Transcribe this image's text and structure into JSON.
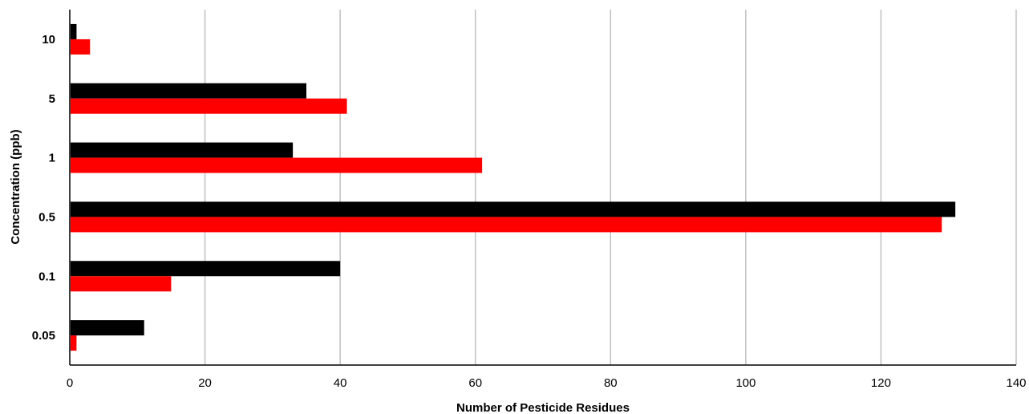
{
  "chart_data": {
    "type": "bar",
    "orientation": "horizontal",
    "categories": [
      "10",
      "5",
      "1",
      "0.5",
      "0.1",
      "0.05"
    ],
    "series": [
      {
        "color": "#000000",
        "values": [
          1,
          35,
          33,
          131,
          40,
          11
        ]
      },
      {
        "color": "#ff0000",
        "values": [
          3,
          41,
          61,
          129,
          15,
          1
        ]
      }
    ],
    "xlabel": "Number of Pesticide Residues",
    "ylabel": "Concentration (ppb)",
    "xlim": [
      0,
      140
    ],
    "xticks": [
      0,
      20,
      40,
      60,
      80,
      100,
      120,
      140
    ],
    "grid": "vertical",
    "legend": "none"
  }
}
